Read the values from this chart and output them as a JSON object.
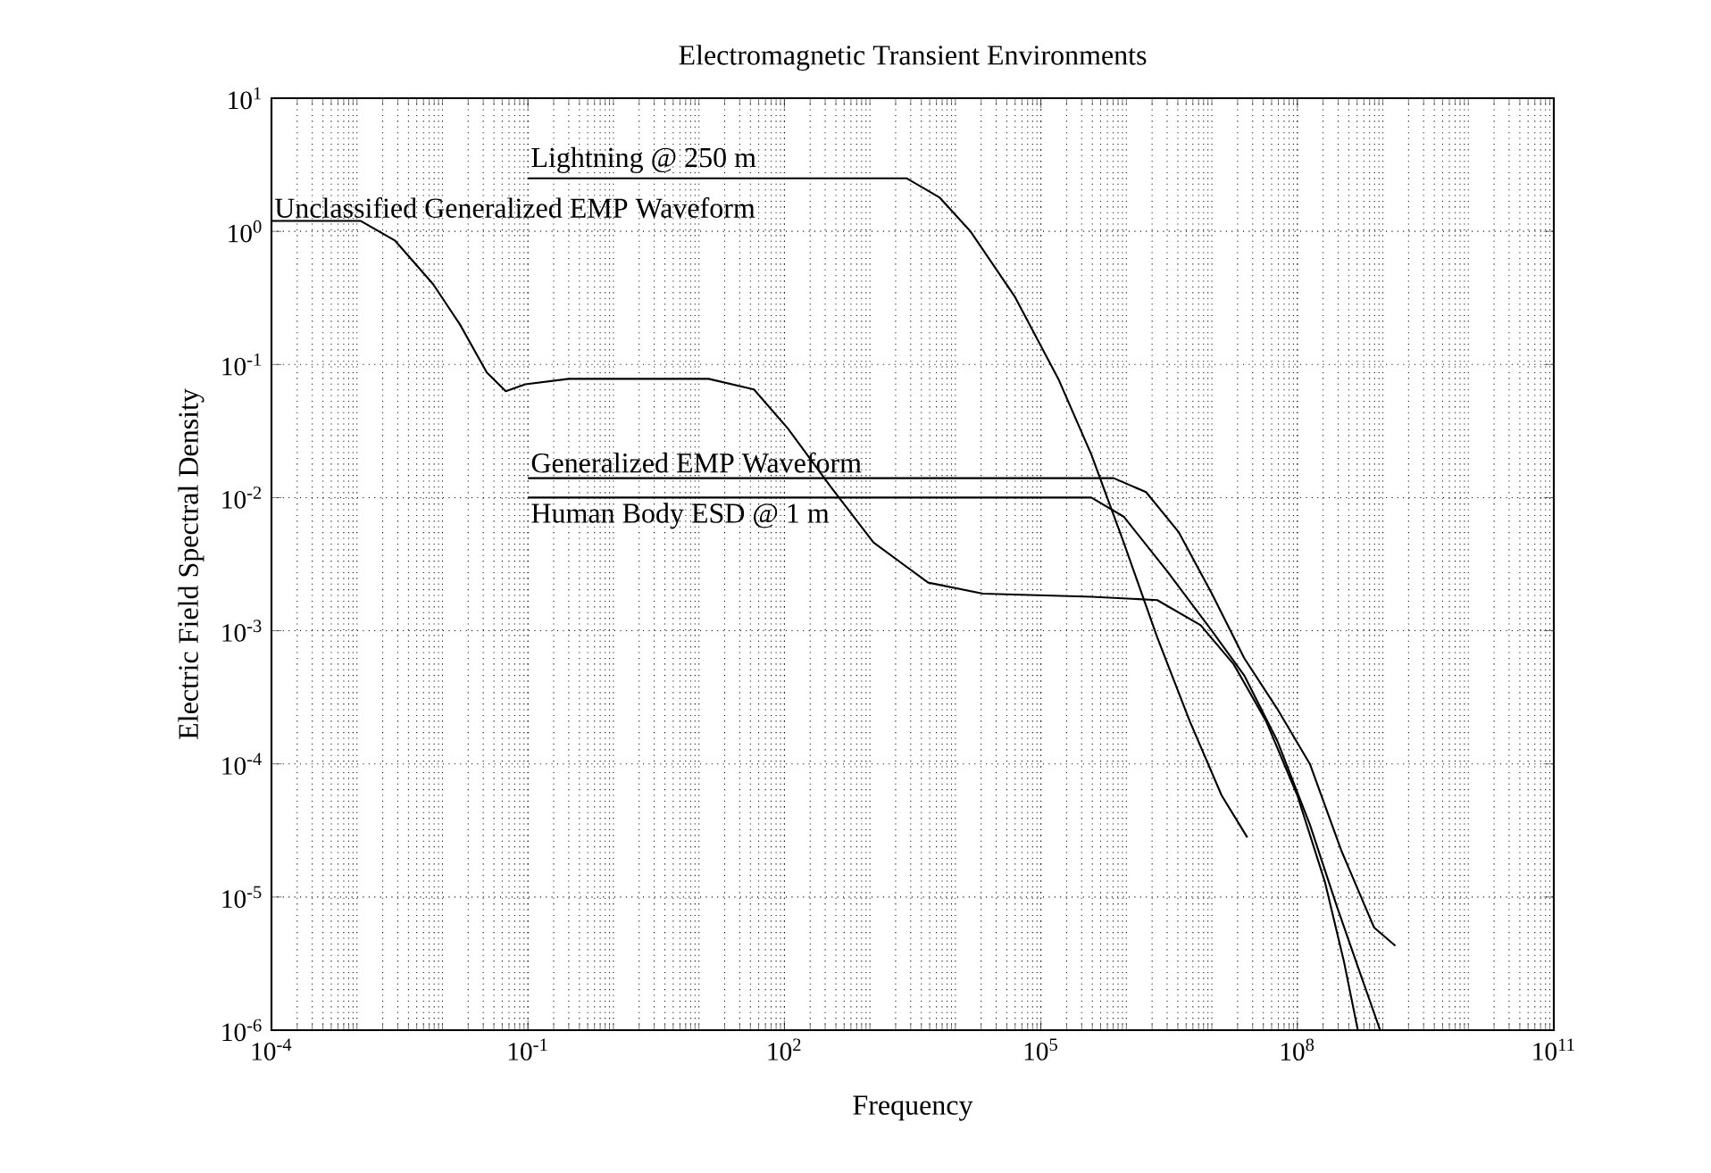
{
  "chart_data": {
    "type": "line",
    "title": "Electromagnetic Transient Environments",
    "xlabel": "Frequency",
    "ylabel": "Electric Field Spectral Density",
    "log": "xy",
    "grid": true,
    "line_style": "solid",
    "marker": "none",
    "xlim": [
      0.0001,
      100000000000.0
    ],
    "ylim": [
      1e-06,
      10
    ],
    "xticks": [
      {
        "value": 0.0001,
        "label": "10$^{-4}$"
      },
      {
        "value": 0.1,
        "label": "10$^{-1}$"
      },
      {
        "value": 100,
        "label": "10$^{2}$"
      },
      {
        "value": 100000.0,
        "label": "10$^{5}$"
      },
      {
        "value": 100000000.0,
        "label": "10$^{8}$"
      },
      {
        "value": 100000000000.0,
        "label": "10$^{11}$"
      }
    ],
    "yticks": [
      {
        "value": 1e-06,
        "label": "10$^{-6}$"
      },
      {
        "value": 1e-05,
        "label": "10$^{-5}$"
      },
      {
        "value": 0.0001,
        "label": "10$^{-4}$"
      },
      {
        "value": 0.001,
        "label": "10$^{-3}$"
      },
      {
        "value": 0.01,
        "label": "10$^{-2}$"
      },
      {
        "value": 0.1,
        "label": "10$^{-1}$"
      },
      {
        "value": 1,
        "label": "10$^{0}$"
      },
      {
        "value": 10,
        "label": "10$^{1}$"
      }
    ],
    "series": [
      {
        "name": "Lightning @ 250 m",
        "color": "#000000",
        "x": [
          0.1,
          2700.0,
          6500.0,
          15000.0,
          50000.0,
          160000.0,
          390000.0,
          930000.0,
          2300000.0,
          5500000.0,
          13000000.0,
          26000000.0
        ],
        "values": [
          2.5,
          2.5,
          1.8,
          1.0,
          0.32,
          0.078,
          0.021,
          0.0046,
          0.00089,
          0.00021,
          5.8e-05,
          2.8e-05
        ]
      },
      {
        "name": "Unclassified Generalized EMP Waveform",
        "color": "#000000",
        "x": [
          0.0001,
          0.0011,
          0.0028,
          0.0078,
          0.016,
          0.033,
          0.055,
          0.093,
          0.3,
          13,
          44,
          110,
          350,
          1100.0,
          4800.0,
          21000.0,
          390000.0,
          2300000.0,
          7400000.0,
          18000000.0,
          43000000.0,
          100000000.0,
          210000000.0,
          350000000.0,
          510000000.0
        ],
        "values": [
          1.2,
          1.2,
          0.85,
          0.4,
          0.2,
          0.087,
          0.063,
          0.071,
          0.078,
          0.078,
          0.065,
          0.033,
          0.012,
          0.0046,
          0.0023,
          0.0019,
          0.0018,
          0.0017,
          0.0011,
          0.00056,
          0.00021,
          5.8e-05,
          1.3e-05,
          3.3e-06,
          1e-06
        ]
      },
      {
        "name": "Generalized EMP Waveform",
        "color": "#000000",
        "x": [
          0.1,
          710000.0,
          1700000.0,
          4100000.0,
          10000000.0,
          24000000.0,
          58000000.0,
          140000000.0,
          330000000.0,
          790000000.0,
          1400000000.0
        ],
        "values": [
          0.014,
          0.014,
          0.011,
          0.0055,
          0.0019,
          0.00062,
          0.00026,
          0.0001,
          2.2e-05,
          5.9e-06,
          4.3e-06
        ]
      },
      {
        "name": "Human Body ESD @ 1 m",
        "color": "#000000",
        "x": [
          0.1,
          390000.0,
          930000.0,
          3000000.0,
          10000000.0,
          24000000.0,
          58000000.0,
          140000000.0,
          290000000.0,
          510000000.0,
          930000000.0
        ],
        "values": [
          0.01,
          0.01,
          0.0072,
          0.0028,
          0.001,
          0.00046,
          0.00015,
          3.5e-05,
          8.5e-06,
          3e-06,
          1e-06
        ]
      }
    ]
  }
}
